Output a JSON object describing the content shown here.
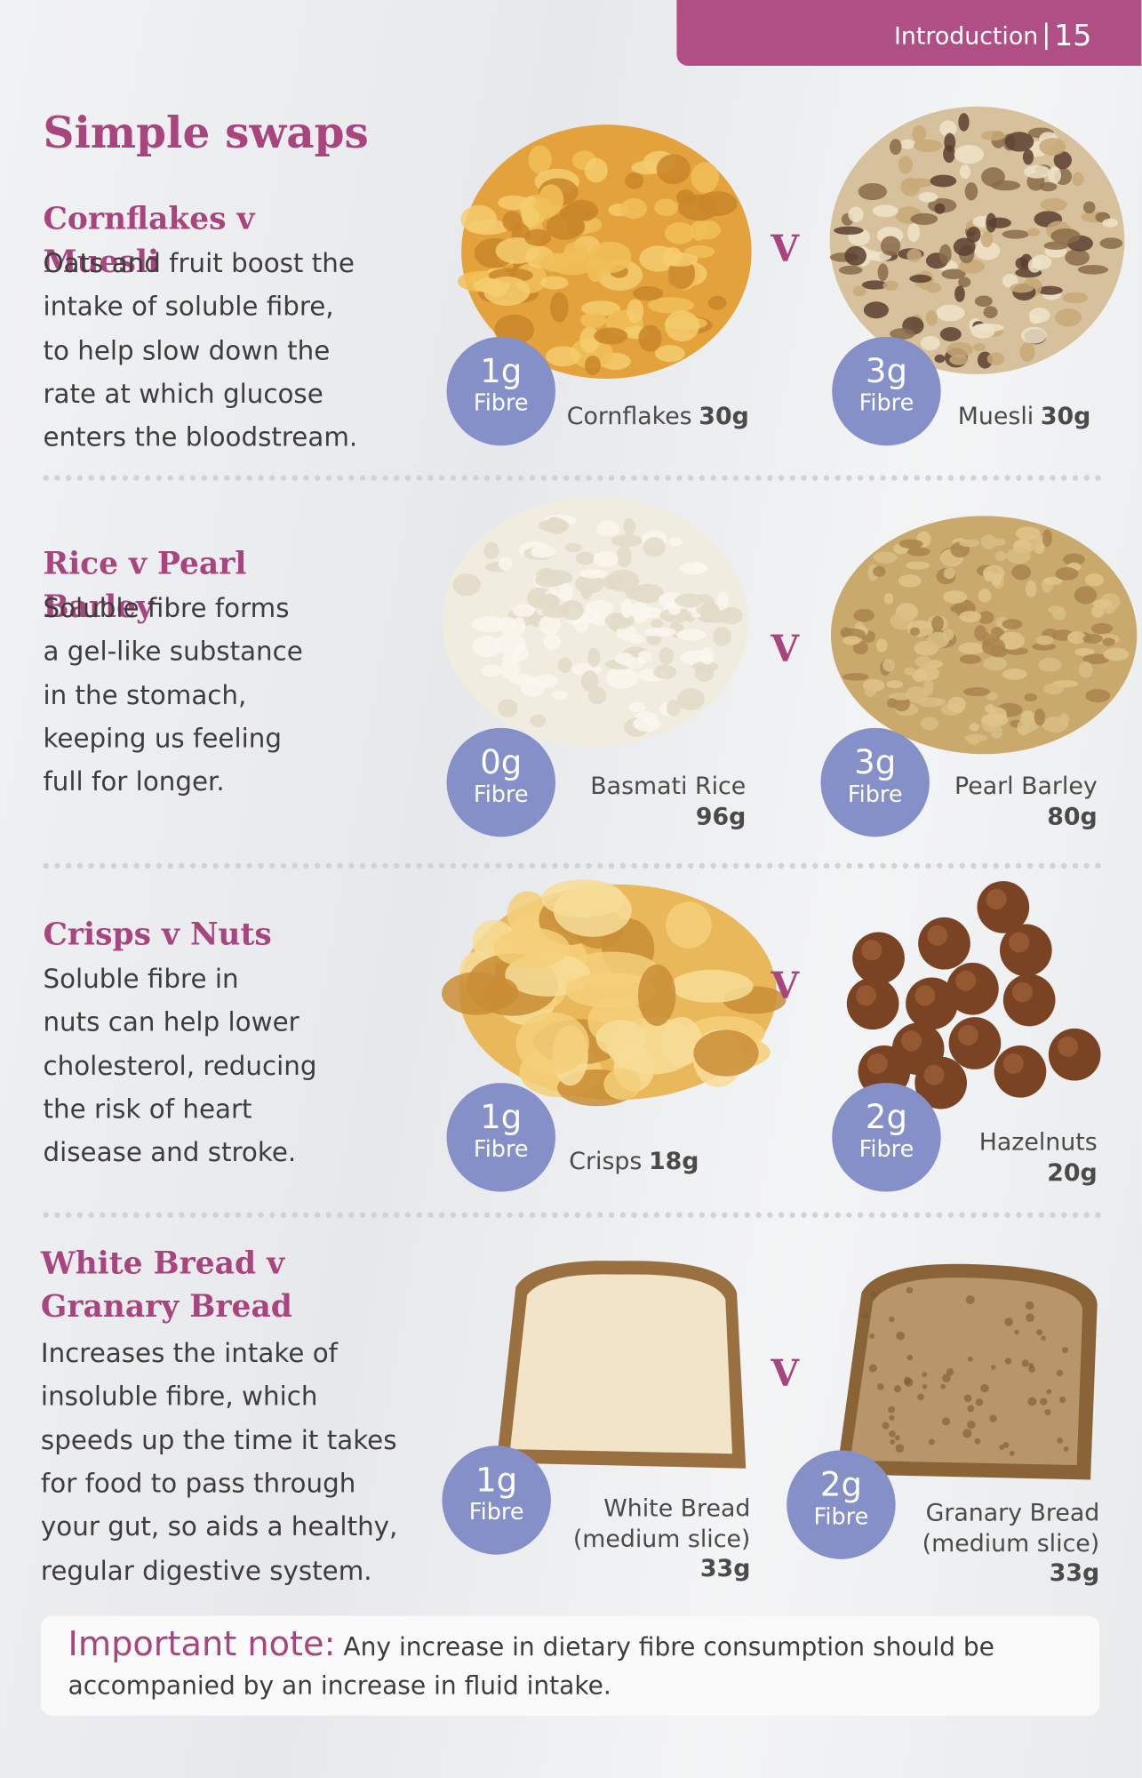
{
  "header": {
    "section": "Introduction",
    "page": "15"
  },
  "title": "Simple swaps",
  "versus": "V",
  "swaps": [
    {
      "heading": "Cornflakes v Muesli",
      "description": [
        "Oats and fruit boost the",
        "intake of soluble fibre,",
        "to help slow down the",
        "rate at which glucose",
        "enters the bloodstream."
      ],
      "items": [
        {
          "fibre": "1g",
          "fibre_label": "Fibre",
          "name": "Cornflakes",
          "weight": "30g"
        },
        {
          "fibre": "3g",
          "fibre_label": "Fibre",
          "name": "Muesli",
          "weight": "30g"
        }
      ]
    },
    {
      "heading": "Rice v Pearl Barley",
      "description": [
        "Soluble fibre forms",
        "a gel-like substance",
        "in the stomach,",
        "keeping us feeling",
        "full for longer."
      ],
      "items": [
        {
          "fibre": "0g",
          "fibre_label": "Fibre",
          "name": "Basmati Rice",
          "weight": "96g"
        },
        {
          "fibre": "3g",
          "fibre_label": "Fibre",
          "name": "Pearl Barley",
          "weight": "80g"
        }
      ]
    },
    {
      "heading": "Crisps v Nuts",
      "description": [
        "Soluble fibre in",
        "nuts can help lower",
        "cholesterol, reducing",
        "the risk of heart",
        "disease and stroke."
      ],
      "items": [
        {
          "fibre": "1g",
          "fibre_label": "Fibre",
          "name": "Crisps",
          "weight": "18g"
        },
        {
          "fibre": "2g",
          "fibre_label": "Fibre",
          "name": "Hazelnuts",
          "weight": "20g"
        }
      ]
    },
    {
      "heading": "White Bread v Granary Bread",
      "description": [
        "Increases the intake of",
        "insoluble fibre, which",
        "speeds up the time it takes",
        "for food to pass through",
        "your gut, so aids a healthy,",
        "regular digestive system."
      ],
      "items": [
        {
          "fibre": "1g",
          "fibre_label": "Fibre",
          "name": "White Bread",
          "detail": "(medium slice)",
          "weight": "33g"
        },
        {
          "fibre": "2g",
          "fibre_label": "Fibre",
          "name": "Granary Bread",
          "detail": "(medium slice)",
          "weight": "33g"
        }
      ]
    }
  ],
  "note": {
    "label": "Important note:",
    "text": "Any increase in dietary fibre consumption should be accompanied by an increase in fluid intake."
  }
}
